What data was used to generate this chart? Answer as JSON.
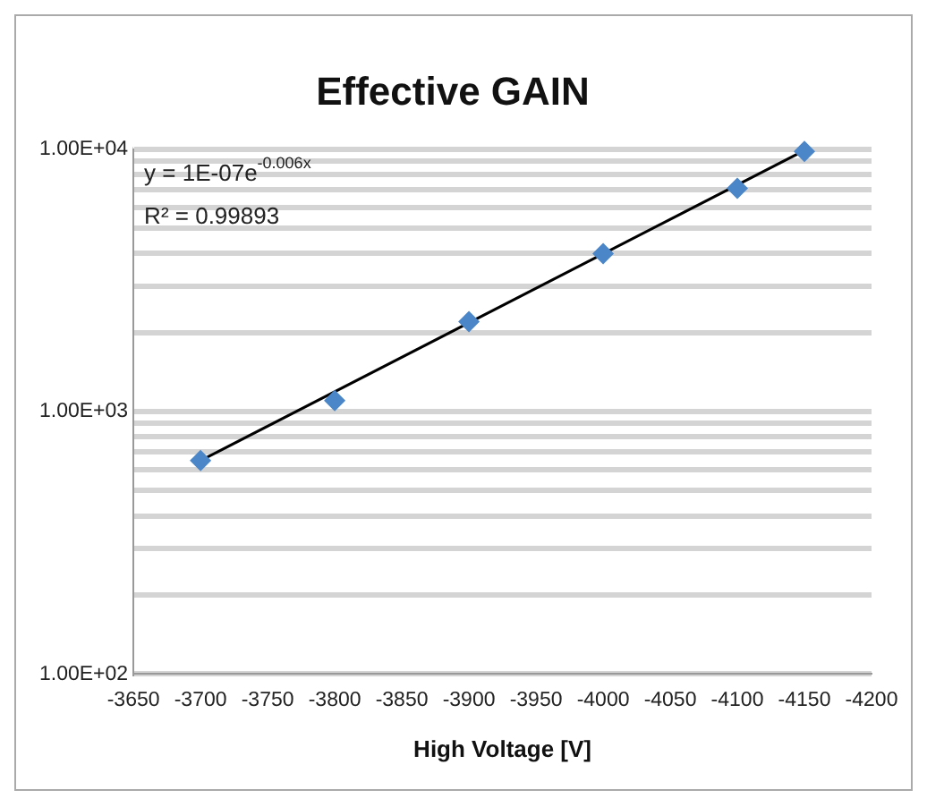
{
  "chart_data": {
    "type": "scatter",
    "title": "Effective GAIN",
    "xlabel": "High Voltage [V]",
    "x": [
      -3700,
      -3800,
      -3900,
      -4000,
      -4100,
      -4150
    ],
    "series": [
      {
        "color": "#4a86c8",
        "marker": "diamond",
        "values": [
          650,
          1100,
          2200,
          4000,
          7100,
          9800
        ]
      },
      {
        "type": "line",
        "color": "#000000",
        "marker": "none",
        "line_style": "solid",
        "x": [
          -3700,
          -4150
        ],
        "values": [
          650,
          9900
        ]
      }
    ],
    "annotations": [
      "y = 1E-07e$^{-0.006x}$",
      "R² = 0.99893"
    ],
    "log": "y",
    "grid": "y",
    "legend": false,
    "xlim": [
      -3650,
      -4200
    ],
    "xticks": [
      -3650,
      -3700,
      -3750,
      -3800,
      -3850,
      -3900,
      -3950,
      -4000,
      -4050,
      -4100,
      -4150,
      -4200
    ],
    "ylim": [
      100,
      10000
    ],
    "yticks": [
      {
        "value": 100,
        "label": "1.00E+02"
      },
      {
        "value": 200,
        "label": null
      },
      {
        "value": 300,
        "label": null
      },
      {
        "value": 400,
        "label": null
      },
      {
        "value": 500,
        "label": null
      },
      {
        "value": 600,
        "label": null
      },
      {
        "value": 700,
        "label": null
      },
      {
        "value": 800,
        "label": null
      },
      {
        "value": 900,
        "label": null
      },
      {
        "value": 1000,
        "label": "1.00E+03"
      },
      {
        "value": 2000,
        "label": null
      },
      {
        "value": 3000,
        "label": null
      },
      {
        "value": 4000,
        "label": null
      },
      {
        "value": 5000,
        "label": null
      },
      {
        "value": 6000,
        "label": null
      },
      {
        "value": 7000,
        "label": null
      },
      {
        "value": 8000,
        "label": null
      },
      {
        "value": 9000,
        "label": null
      },
      {
        "value": 10000,
        "label": "1.00E+04"
      }
    ]
  }
}
